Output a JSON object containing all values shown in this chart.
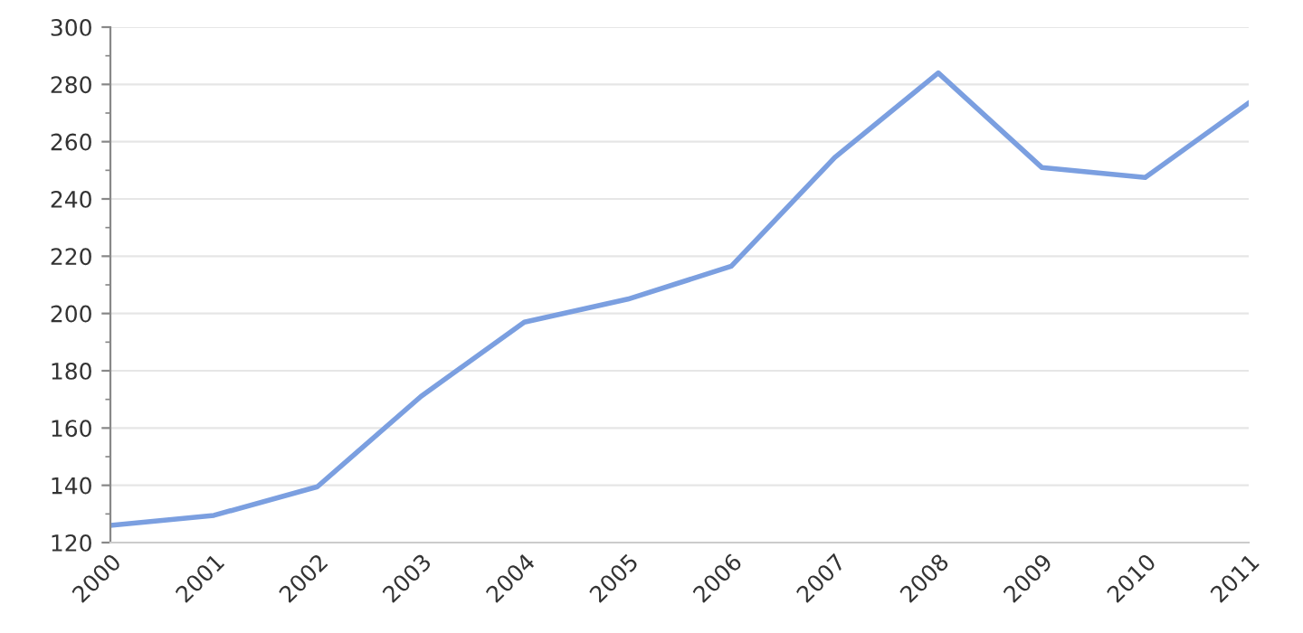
{
  "chart_data": {
    "type": "line",
    "categories": [
      "2000",
      "2001",
      "2002",
      "2003",
      "2004",
      "2005",
      "2006",
      "2007",
      "2008",
      "2009",
      "2010",
      "2011"
    ],
    "series": [
      {
        "color": "#7b9fe0",
        "values": [
          126,
          129.5,
          139.5,
          171,
          197,
          205,
          216.5,
          254.5,
          284,
          251,
          247.5,
          273.5
        ]
      }
    ],
    "ylim": [
      120,
      300
    ],
    "yticks": [
      120,
      140,
      160,
      180,
      200,
      220,
      240,
      260,
      280,
      300
    ],
    "grid": "y",
    "marker": "none",
    "line_style": "solid",
    "legend": false
  }
}
